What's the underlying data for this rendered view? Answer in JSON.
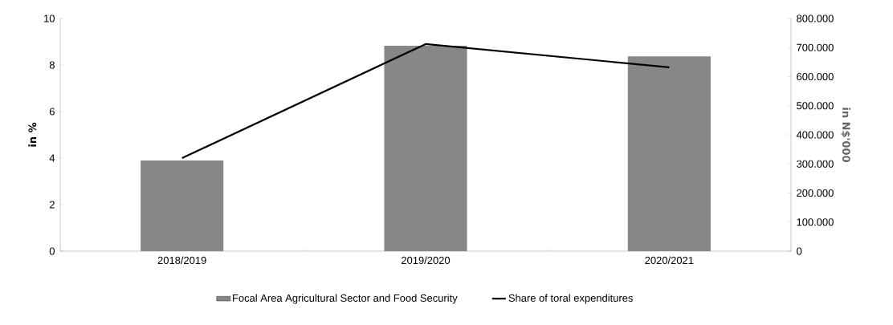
{
  "chart_data": {
    "type": "bar",
    "categories": [
      "2018/2019",
      "2019/2020",
      "2020/2021"
    ],
    "series": [
      {
        "name": "Focal Area Agricultural Sector and Food Security",
        "axis": "y2",
        "color": "#878787",
        "values": [
          312000,
          706000,
          670000
        ]
      },
      {
        "name": "Share of toral expenditures",
        "type": "line",
        "axis": "y",
        "color": "#000000",
        "values": [
          4.0,
          8.9,
          7.9
        ]
      }
    ],
    "ylabel": "in %",
    "y2label": "in N$'000",
    "ylim": [
      0,
      10
    ],
    "yticks": [
      0,
      2,
      4,
      6,
      8,
      10
    ],
    "y2lim": [
      0,
      800000
    ],
    "y2ticks": [
      {
        "value": 0,
        "label": "0"
      },
      {
        "value": 100000,
        "label": "100.000"
      },
      {
        "value": 200000,
        "label": "200.000"
      },
      {
        "value": 300000,
        "label": "300.000"
      },
      {
        "value": 400000,
        "label": "400.000"
      },
      {
        "value": 500000,
        "label": "500.000"
      },
      {
        "value": 600000,
        "label": "600.000"
      },
      {
        "value": 700000,
        "label": "700.000"
      },
      {
        "value": 800000,
        "label": "800.000"
      }
    ],
    "legend": "bottom"
  }
}
